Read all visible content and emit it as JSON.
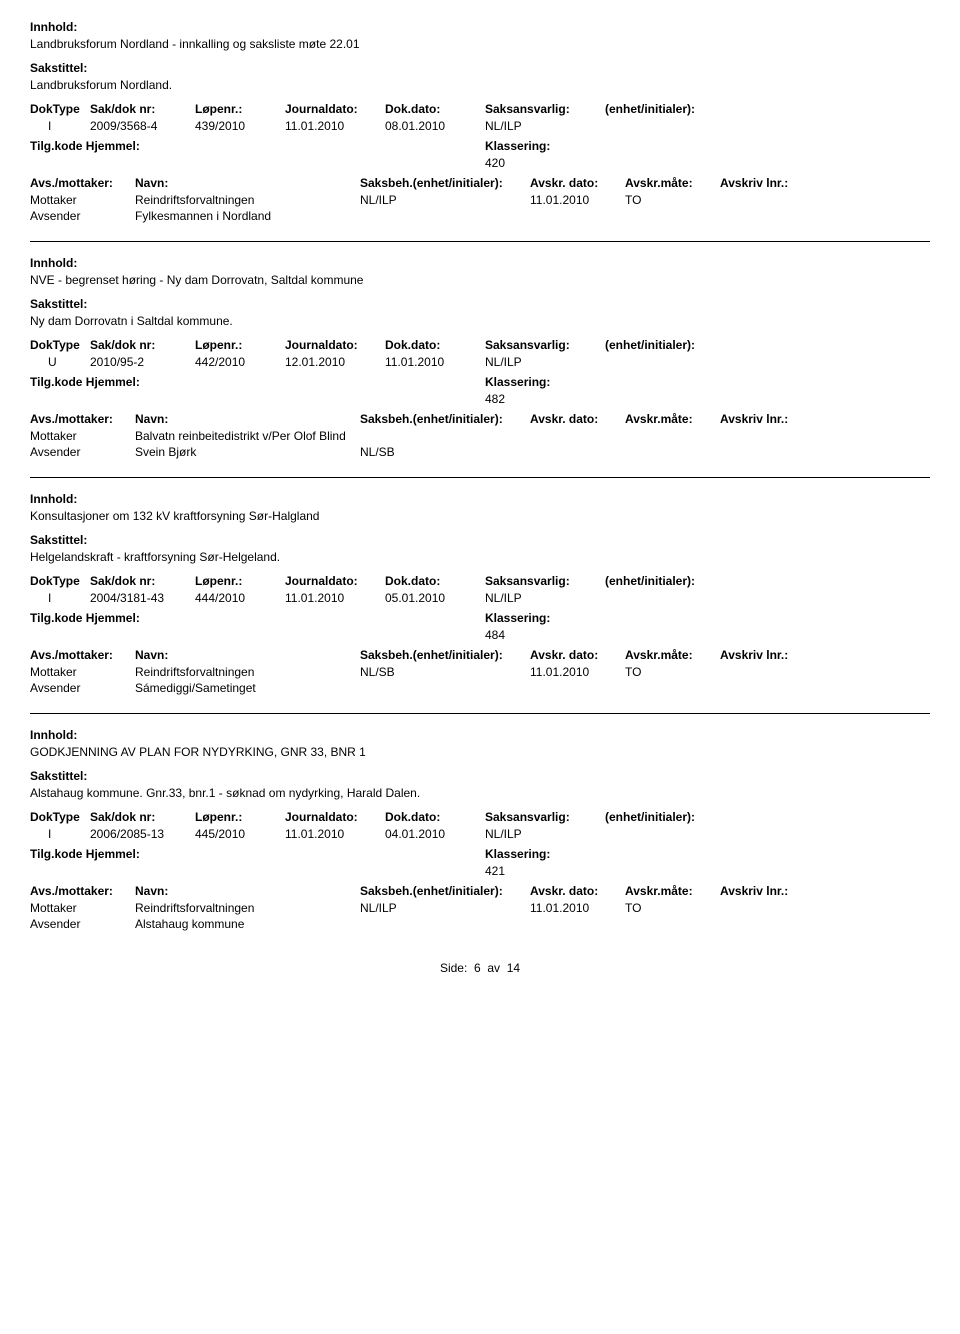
{
  "labels": {
    "innhold": "Innhold:",
    "sakstittel": "Sakstittel:",
    "doktype": "DokType",
    "sakdok": "Sak/dok nr:",
    "lopenr": "Løpenr.:",
    "journaldato": "Journaldato:",
    "dokdato": "Dok.dato:",
    "saksansvarlig": "Saksansvarlig:",
    "enhet": "(enhet/initialer):",
    "tilgkode": "Tilg.kode",
    "hjemmel": "Hjemmel:",
    "klassering": "Klassering:",
    "avsmot": "Avs./mottaker:",
    "navn": "Navn:",
    "saksbeh": "Saksbeh.(enhet/initialer):",
    "avskrdato": "Avskr. dato:",
    "avskrmate": "Avskr.måte:",
    "avskrlnr": "Avskriv lnr.:",
    "mottaker": "Mottaker",
    "avsender": "Avsender"
  },
  "records": [
    {
      "innhold": "Landbruksforum Nordland - innkalling og saksliste møte 22.01",
      "sakstittel": "Landbruksforum Nordland.",
      "doktype": "I",
      "sakdok": "2009/3568-4",
      "lopenr": "439/2010",
      "journaldato": "11.01.2010",
      "dokdato": "08.01.2010",
      "saksansvarlig": "NL/ILP",
      "klassering": "420",
      "parties": [
        {
          "role": "Mottaker",
          "navn": "Reindriftsforvaltningen",
          "saksbeh": "NL/ILP",
          "avskrdato": "11.01.2010",
          "avskrmate": "TO"
        },
        {
          "role": "Avsender",
          "navn": "Fylkesmannen i Nordland",
          "saksbeh": "",
          "avskrdato": "",
          "avskrmate": ""
        }
      ]
    },
    {
      "innhold": "NVE - begrenset høring - Ny dam Dorrovatn, Saltdal kommune",
      "sakstittel": "Ny dam Dorrovatn i Saltdal kommune.",
      "doktype": "U",
      "sakdok": "2010/95-2",
      "lopenr": "442/2010",
      "journaldato": "12.01.2010",
      "dokdato": "11.01.2010",
      "saksansvarlig": "NL/ILP",
      "klassering": "482",
      "parties": [
        {
          "role": "Mottaker",
          "navn": "Balvatn reinbeitedistrikt v/Per Olof Blind",
          "saksbeh": "",
          "avskrdato": "",
          "avskrmate": ""
        },
        {
          "role": "Avsender",
          "navn": "Svein Bjørk",
          "saksbeh": "NL/SB",
          "avskrdato": "",
          "avskrmate": ""
        }
      ]
    },
    {
      "innhold": "Konsultasjoner om 132 kV kraftforsyning Sør-Halgland",
      "sakstittel": "Helgelandskraft - kraftforsyning Sør-Helgeland.",
      "doktype": "I",
      "sakdok": "2004/3181-43",
      "lopenr": "444/2010",
      "journaldato": "11.01.2010",
      "dokdato": "05.01.2010",
      "saksansvarlig": "NL/ILP",
      "klassering": "484",
      "parties": [
        {
          "role": "Mottaker",
          "navn": "Reindriftsforvaltningen",
          "saksbeh": "NL/SB",
          "avskrdato": "11.01.2010",
          "avskrmate": "TO"
        },
        {
          "role": "Avsender",
          "navn": "Sámediggi/Sametinget",
          "saksbeh": "",
          "avskrdato": "",
          "avskrmate": ""
        }
      ]
    },
    {
      "innhold": "GODKJENNING AV PLAN FOR NYDYRKING, GNR 33, BNR 1",
      "sakstittel": "Alstahaug kommune. Gnr.33, bnr.1 - søknad om nydyrking, Harald Dalen.",
      "doktype": "I",
      "sakdok": "2006/2085-13",
      "lopenr": "445/2010",
      "journaldato": "11.01.2010",
      "dokdato": "04.01.2010",
      "saksansvarlig": "NL/ILP",
      "klassering": "421",
      "parties": [
        {
          "role": "Mottaker",
          "navn": "Reindriftsforvaltningen",
          "saksbeh": "NL/ILP",
          "avskrdato": "11.01.2010",
          "avskrmate": "TO"
        },
        {
          "role": "Avsender",
          "navn": "Alstahaug kommune",
          "saksbeh": "",
          "avskrdato": "",
          "avskrmate": ""
        }
      ]
    }
  ],
  "footer": {
    "side": "Side:",
    "page": "6",
    "av": "av",
    "total": "14"
  }
}
